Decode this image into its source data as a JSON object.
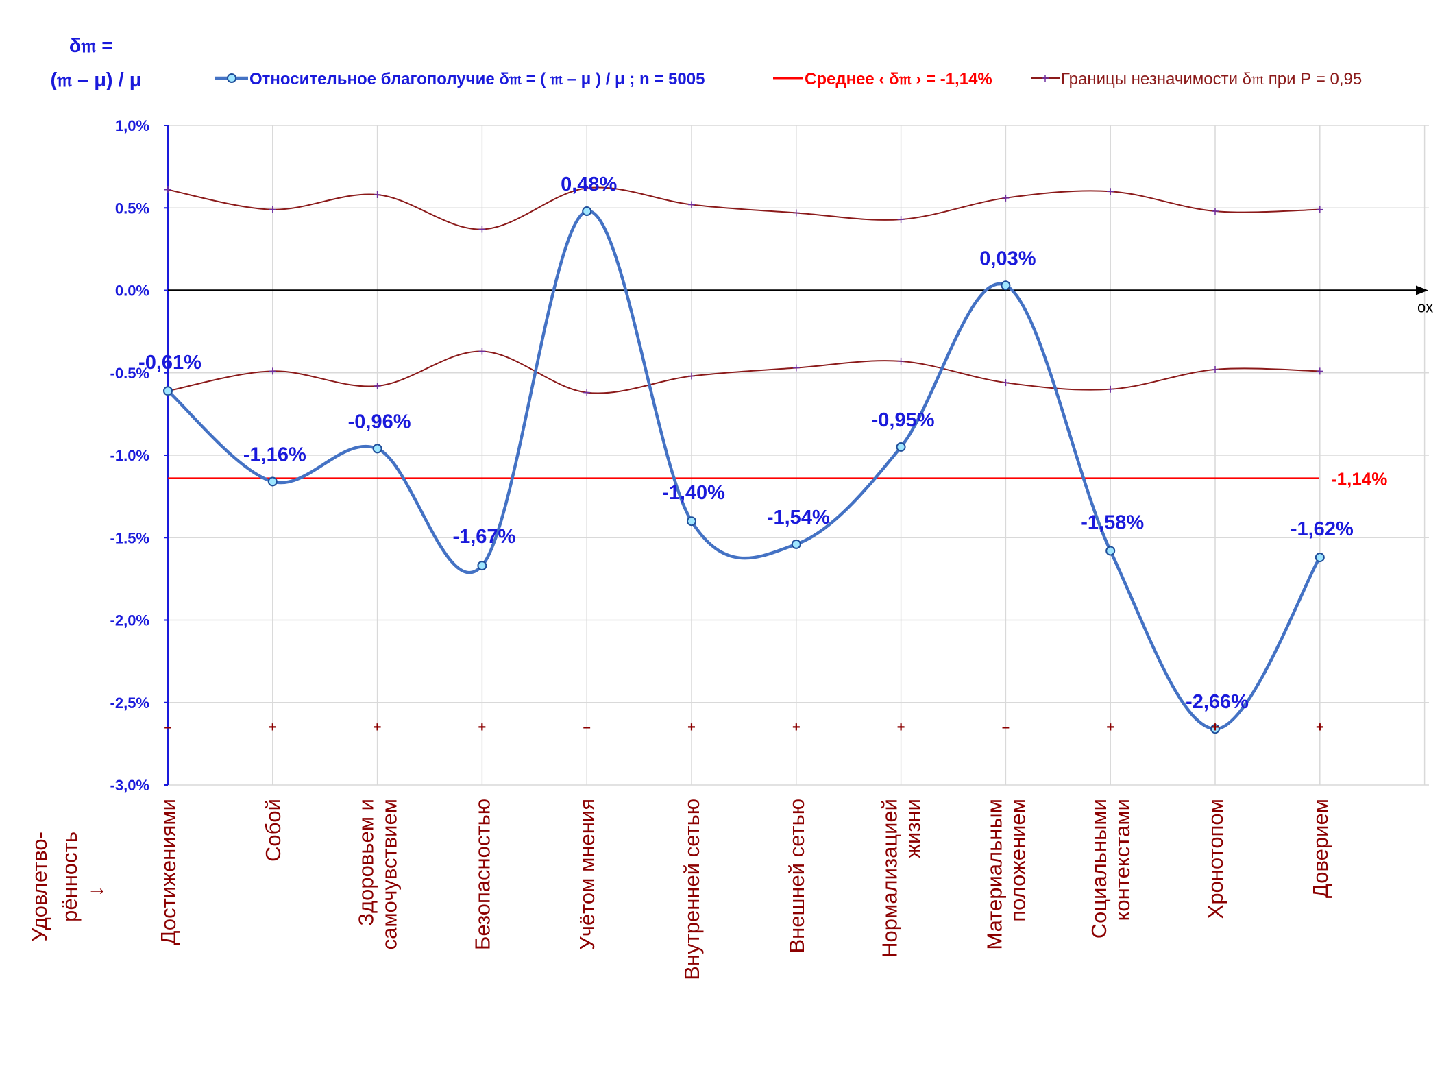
{
  "chart_data": {
    "type": "line",
    "y_axis_title": [
      "δ𝔪 =",
      "(𝔪 – μ) / μ"
    ],
    "x_axis_note": [
      "Удовлетво-",
      "рённость",
      "↓"
    ],
    "x_axis_end_label": "ox",
    "ylim": [
      -3.0,
      1.0
    ],
    "y_ticks": [
      {
        "value": 1.0,
        "label": "1,0%"
      },
      {
        "value": 0.5,
        "label": "0.5%"
      },
      {
        "value": 0.0,
        "label": "0.0%"
      },
      {
        "value": -0.5,
        "label": "-0.5%"
      },
      {
        "value": -1.0,
        "label": "-1.0%"
      },
      {
        "value": -1.5,
        "label": "-1.5%"
      },
      {
        "value": -2.0,
        "label": "-2,0%"
      },
      {
        "value": -2.5,
        "label": "-2,5%"
      },
      {
        "value": -3.0,
        "label": "-3,0%"
      }
    ],
    "grid": true,
    "legend_position": "top",
    "categories": [
      [
        "Достижениями"
      ],
      [
        "Собой"
      ],
      [
        "Здоровьем и",
        "самочувствием"
      ],
      [
        "Безопасностью"
      ],
      [
        "Учётом мнения"
      ],
      [
        "Внутренней сетью"
      ],
      [
        "Внешней сетью"
      ],
      [
        "Нормализацией",
        "жизни"
      ],
      [
        "Материальным",
        "положением"
      ],
      [
        "Социальными",
        "контекстами"
      ],
      [
        "Хронотопом"
      ],
      [
        "Доверием"
      ]
    ],
    "series": [
      {
        "name": "Относительное благополучие δ𝔪 = ( 𝔪 – μ ) / μ ; n = 5005",
        "color": "#4472c4",
        "values": [
          -0.61,
          -1.16,
          -0.96,
          -1.67,
          0.48,
          -1.4,
          -1.54,
          -0.95,
          0.03,
          -1.58,
          -2.66,
          -1.62
        ],
        "labels": [
          "-0,61%",
          "-1,16%",
          "-0,96%",
          "-1,67%",
          "0,48%",
          "-1,40%",
          "-1,54%",
          "-0,95%",
          "0,03%",
          "-1,58%",
          "-2,66%",
          "-1,62%"
        ]
      },
      {
        "name": "Среднее ‹ δ𝔪 › = -1,14%",
        "color": "#ff0000",
        "value": -1.14,
        "label": "-1,14%"
      },
      {
        "name": "Границы незначимости δ𝔪 при Р = 0,95",
        "color": "#8b1a1a",
        "upper": [
          0.61,
          0.49,
          0.58,
          0.37,
          0.62,
          0.52,
          0.47,
          0.43,
          0.56,
          0.6,
          0.48,
          0.49
        ],
        "lower": [
          -0.61,
          -0.49,
          -0.58,
          -0.37,
          -0.62,
          -0.52,
          -0.47,
          -0.43,
          -0.56,
          -0.6,
          -0.48,
          -0.49
        ]
      }
    ],
    "significance_markers": [
      "–",
      "+",
      "+",
      "+",
      "–",
      "+",
      "+",
      "+",
      "–",
      "+",
      "+",
      "+"
    ]
  }
}
